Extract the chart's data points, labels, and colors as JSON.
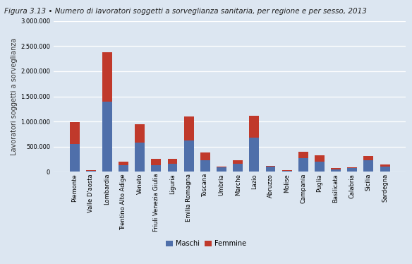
{
  "title": "Figura 3.13 • Numero di lavoratori soggetti a sorveglianza sanitaria, per regione e per sesso, 2013",
  "ylabel": "Lavoratori soggetti a sorveglianza",
  "regions": [
    "Piemonte",
    "Valle D'aosta",
    "Lombardia",
    "Trentino Alto Adige",
    "Veneto",
    "Friuli Venezia Giulia",
    "Liguria",
    "Emilia Romagna",
    "Toscana",
    "Umbria",
    "Marche",
    "Lazio",
    "Abruzzo",
    "Molise",
    "Campania",
    "Puglia",
    "Basilicata",
    "Calabria",
    "Sicilia",
    "Sardegna"
  ],
  "maschi": [
    550000,
    20000,
    1400000,
    130000,
    580000,
    130000,
    150000,
    620000,
    220000,
    80000,
    150000,
    670000,
    100000,
    20000,
    270000,
    200000,
    50000,
    65000,
    230000,
    100000
  ],
  "femmine": [
    440000,
    15000,
    980000,
    70000,
    360000,
    120000,
    110000,
    480000,
    160000,
    25000,
    70000,
    450000,
    20000,
    10000,
    120000,
    120000,
    15000,
    20000,
    75000,
    40000
  ],
  "color_maschi": "#4f6faa",
  "color_femmine": "#c0392b",
  "figure_facecolor": "#dce6f1",
  "axes_facecolor": "#dce6f1",
  "ylim": [
    0,
    3000000
  ],
  "yticks": [
    0,
    500000,
    1000000,
    1500000,
    2000000,
    2500000,
    3000000
  ],
  "legend_labels": [
    "Maschi",
    "Femmine"
  ],
  "title_fontsize": 7.5,
  "ylabel_fontsize": 7,
  "tick_fontsize": 6,
  "legend_fontsize": 7
}
